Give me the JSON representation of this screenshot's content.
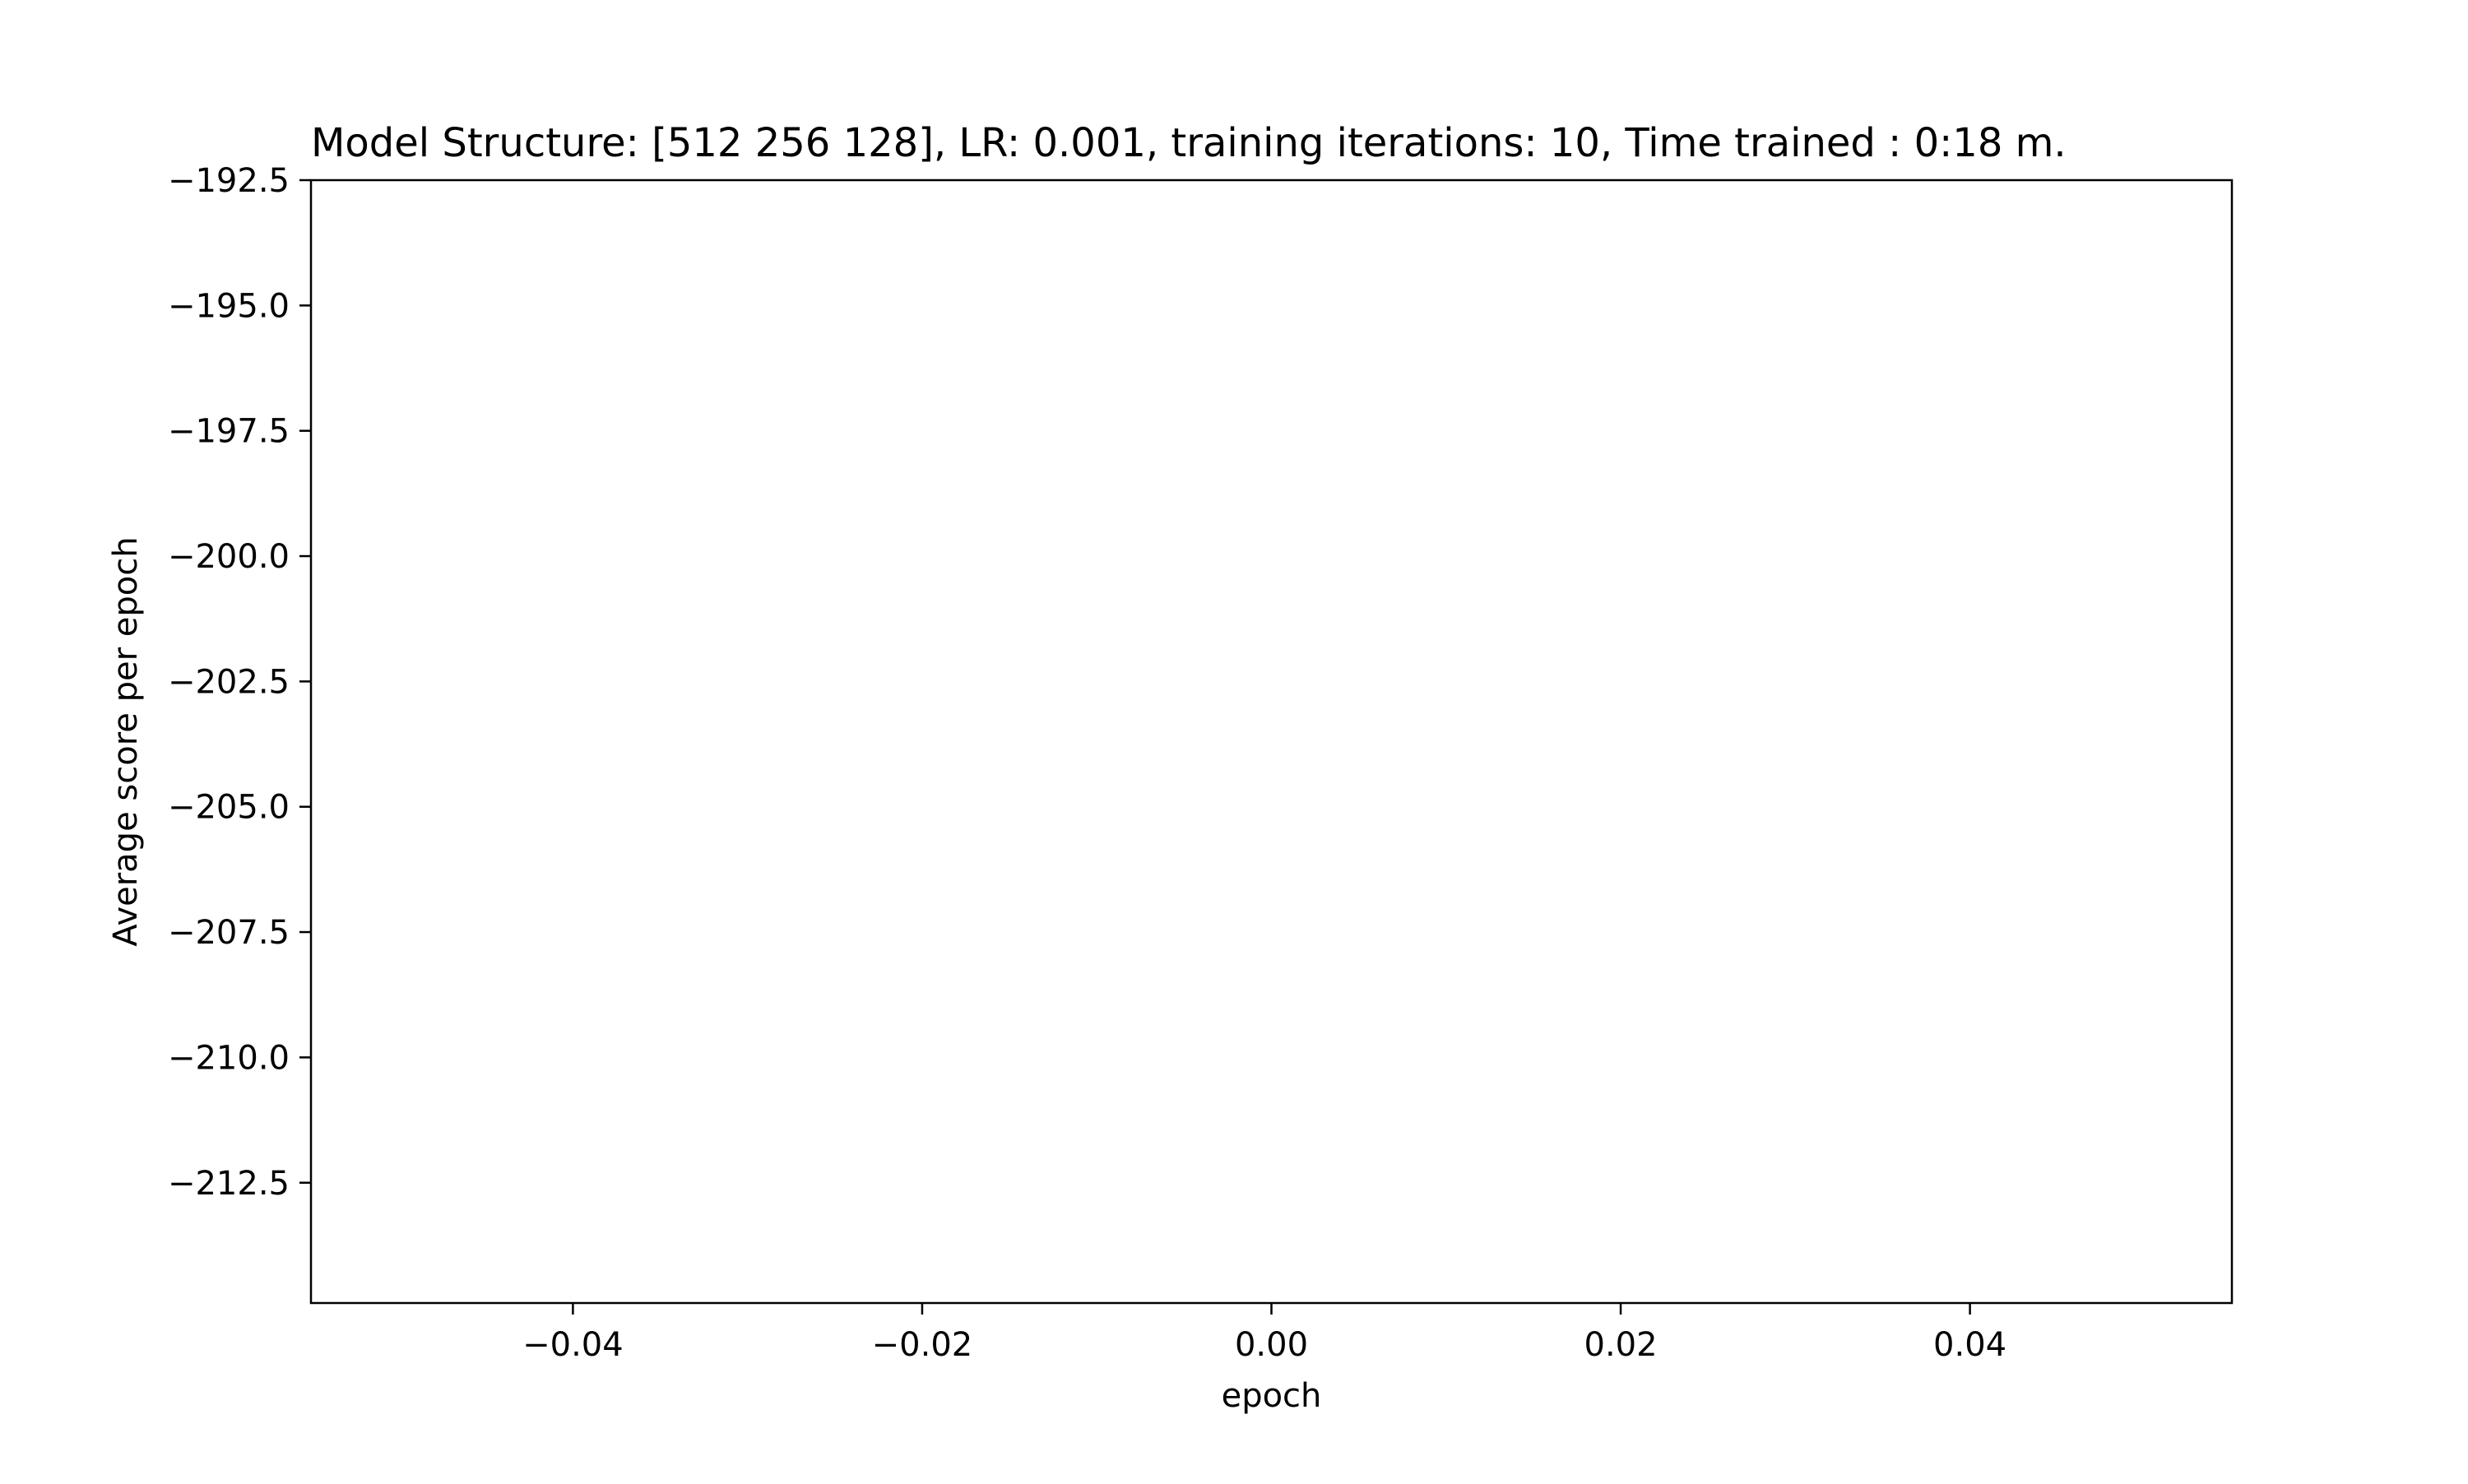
{
  "chart_data": {
    "type": "line",
    "title": "Model Structure: [512 256 128], LR: 0.001, training iterations: 10,  Time trained : 0:18 m.",
    "xlabel": "epoch",
    "ylabel": "Average score per epoch",
    "xlim": [
      -0.055,
      0.055
    ],
    "ylim": [
      -214.9,
      -192.5
    ],
    "x_ticks": [
      {
        "value": -0.04,
        "label": "−0.04"
      },
      {
        "value": -0.02,
        "label": "−0.02"
      },
      {
        "value": 0.0,
        "label": "0.00"
      },
      {
        "value": 0.02,
        "label": "0.02"
      },
      {
        "value": 0.04,
        "label": "0.04"
      }
    ],
    "y_ticks": [
      {
        "value": -192.5,
        "label": "−192.5"
      },
      {
        "value": -195.0,
        "label": "−195.0"
      },
      {
        "value": -197.5,
        "label": "−197.5"
      },
      {
        "value": -200.0,
        "label": "−200.0"
      },
      {
        "value": -202.5,
        "label": "−202.5"
      },
      {
        "value": -205.0,
        "label": "−205.0"
      },
      {
        "value": -207.5,
        "label": "−207.5"
      },
      {
        "value": -210.0,
        "label": "−210.0"
      },
      {
        "value": -212.5,
        "label": "−212.5"
      }
    ],
    "grid": false,
    "series": [
      {
        "x": [],
        "y": []
      }
    ],
    "colors": {
      "axes": "#000000",
      "background": "#ffffff"
    }
  }
}
